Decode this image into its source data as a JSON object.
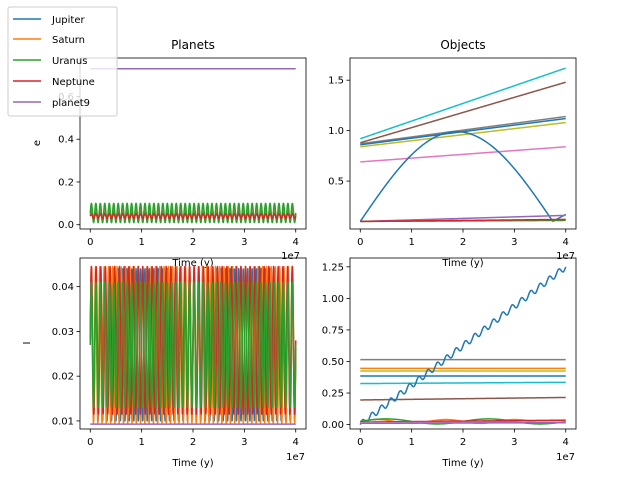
{
  "chart_data": [
    {
      "id": "planets-e",
      "type": "line",
      "title": "Planets",
      "xlabel": "Time (y)",
      "ylabel": "e",
      "x_offset_text": "1e7",
      "xlim": [
        -0.2,
        4.2
      ],
      "ylim": [
        -0.02,
        0.78
      ],
      "xticks": [
        0,
        1,
        2,
        3,
        4
      ],
      "yticks": [
        0.0,
        0.2,
        0.4,
        0.6
      ],
      "ytick_labels": [
        "0.0",
        "0.2",
        "0.4",
        "0.6"
      ],
      "series": [
        {
          "name": "Jupiter",
          "color": "#1f77b4",
          "kind": "osc",
          "base": 0.048,
          "amp": 0.012,
          "periods": 46
        },
        {
          "name": "Saturn",
          "color": "#ff7f0e",
          "kind": "osc",
          "base": 0.05,
          "amp": 0.03,
          "periods": 46
        },
        {
          "name": "Uranus",
          "color": "#2ca02c",
          "kind": "osc",
          "base": 0.055,
          "amp": 0.045,
          "periods": 46
        },
        {
          "name": "Neptune",
          "color": "#d62728",
          "kind": "osc",
          "base": 0.04,
          "amp": 0.01,
          "periods": 46
        },
        {
          "name": "planet9",
          "color": "#9467bd",
          "kind": "const",
          "base": 0.73,
          "amp": 0,
          "periods": 0
        }
      ]
    },
    {
      "id": "objects-e",
      "type": "line",
      "title": "Objects",
      "xlabel": "Time (y)",
      "ylabel": "",
      "x_offset_text": "1e7",
      "xlim": [
        -0.2,
        4.2
      ],
      "ylim": [
        0.025,
        1.72
      ],
      "xticks": [
        0,
        1,
        2,
        3,
        4
      ],
      "yticks": [
        0.5,
        1.0,
        1.5
      ],
      "ytick_labels": [
        "0.5",
        "1.0",
        "1.5"
      ],
      "series": [
        {
          "color": "#17becf",
          "kind": "linear",
          "y0": 0.92,
          "y1": 1.62
        },
        {
          "color": "#8c564b",
          "kind": "linear",
          "y0": 0.88,
          "y1": 1.48
        },
        {
          "color": "#7f7f7f",
          "kind": "linear",
          "y0": 0.87,
          "y1": 1.14
        },
        {
          "color": "#1f77b4",
          "kind": "linear",
          "y0": 0.86,
          "y1": 1.12
        },
        {
          "color": "#bcbd22",
          "kind": "linear",
          "y0": 0.84,
          "y1": 1.08
        },
        {
          "color": "#e377c2",
          "kind": "linear",
          "y0": 0.69,
          "y1": 0.84
        },
        {
          "color": "#1f77b4",
          "kind": "arch",
          "y0": 0.1,
          "peak": 0.99,
          "xend": 3.75,
          "tail": 0.17
        },
        {
          "color": "#9467bd",
          "kind": "linear",
          "y0": 0.1,
          "y1": 0.16
        },
        {
          "color": "#2ca02c",
          "kind": "linear",
          "y0": 0.1,
          "y1": 0.11
        },
        {
          "color": "#d62728",
          "kind": "linear",
          "y0": 0.1,
          "y1": 0.12
        }
      ]
    },
    {
      "id": "planets-i",
      "type": "line",
      "title": "",
      "xlabel": "Time (y)",
      "ylabel": "I",
      "x_offset_text": "1e7",
      "xlim": [
        -0.2,
        4.2
      ],
      "ylim": [
        0.0082,
        0.0464
      ],
      "xticks": [
        0,
        1,
        2,
        3,
        4
      ],
      "yticks": [
        0.01,
        0.02,
        0.03,
        0.04
      ],
      "ytick_labels": [
        "0.01",
        "0.02",
        "0.03",
        "0.04"
      ],
      "series": [
        {
          "color": "#1f77b4",
          "kind": "osc",
          "base": 0.027,
          "amp": 0.017,
          "periods": 46
        },
        {
          "color": "#ff7f0e",
          "kind": "osc",
          "base": 0.027,
          "amp": 0.0175,
          "periods": 48
        },
        {
          "color": "#d62728",
          "kind": "osc",
          "base": 0.028,
          "amp": 0.0165,
          "periods": 44
        },
        {
          "color": "#2ca02c",
          "kind": "osc",
          "base": 0.027,
          "amp": 0.014,
          "periods": 46
        },
        {
          "color": "#9467bd",
          "kind": "const",
          "base": 0.0093,
          "amp": 0,
          "periods": 0
        }
      ]
    },
    {
      "id": "objects-i",
      "type": "line",
      "title": "",
      "xlabel": "Time (y)",
      "ylabel": "",
      "x_offset_text": "1e7",
      "xlim": [
        -0.2,
        4.2
      ],
      "ylim": [
        -0.035,
        1.32
      ],
      "xticks": [
        0,
        1,
        2,
        3,
        4
      ],
      "yticks": [
        0.0,
        0.25,
        0.5,
        0.75,
        1.0,
        1.25
      ],
      "ytick_labels": [
        "0.00",
        "0.25",
        "0.50",
        "0.75",
        "1.00",
        "1.25"
      ],
      "series": [
        {
          "color": "#7f7f7f",
          "kind": "linear",
          "y0": 0.515,
          "y1": 0.515
        },
        {
          "color": "#ff7f0e",
          "kind": "linear",
          "y0": 0.445,
          "y1": 0.445
        },
        {
          "color": "#bcbd22",
          "kind": "linear",
          "y0": 0.425,
          "y1": 0.425
        },
        {
          "color": "#1f77b4",
          "kind": "linear",
          "y0": 0.385,
          "y1": 0.385
        },
        {
          "color": "#17becf",
          "kind": "linear",
          "y0": 0.325,
          "y1": 0.335
        },
        {
          "color": "#8c564b",
          "kind": "linear",
          "y0": 0.195,
          "y1": 0.215
        },
        {
          "color": "#1f77b4",
          "kind": "wavy",
          "y0": 0.0,
          "y1": 1.25,
          "amp": 0.025,
          "periods": 22
        },
        {
          "color": "#ff7f0e",
          "kind": "bump",
          "base": 0.025,
          "amp": 0.015,
          "periods": 3
        },
        {
          "color": "#2ca02c",
          "kind": "bump",
          "base": 0.025,
          "amp": 0.02,
          "periods": 2
        },
        {
          "color": "#d62728",
          "kind": "linear",
          "y0": 0.02,
          "y1": 0.035
        },
        {
          "color": "#e377c2",
          "kind": "linear",
          "y0": 0.015,
          "y1": 0.02
        },
        {
          "color": "#9467bd",
          "kind": "linear",
          "y0": 0.01,
          "y1": 0.015
        }
      ]
    }
  ],
  "legend": {
    "placement": "figure top-left",
    "entries": [
      {
        "label": "Jupiter",
        "color": "#1f77b4"
      },
      {
        "label": "Saturn",
        "color": "#ff7f0e"
      },
      {
        "label": "Uranus",
        "color": "#2ca02c"
      },
      {
        "label": "Neptune",
        "color": "#d62728"
      },
      {
        "label": "planet9",
        "color": "#9467bd"
      }
    ]
  }
}
